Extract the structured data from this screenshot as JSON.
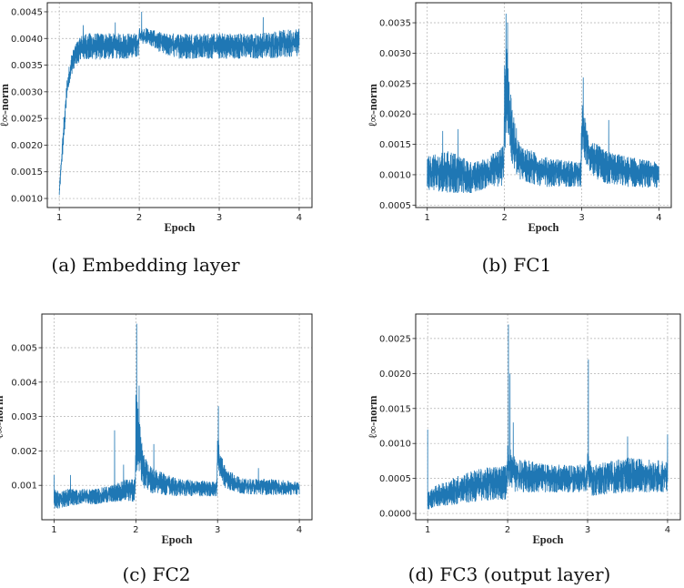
{
  "chart_data": [
    {
      "type": "line",
      "caption": "(a)  Embedding layer",
      "xlabel": "Epoch",
      "ylabel": "ℓ∞-norm",
      "xlim": [
        0.85,
        4.16
      ],
      "ylim": [
        0.00083,
        0.00467
      ],
      "xticks": [
        1,
        2,
        3,
        4
      ],
      "xticklabels": [
        "1",
        "2",
        "3",
        "4"
      ],
      "yticks": [
        0.001,
        0.0015,
        0.002,
        0.0025,
        0.003,
        0.0035,
        0.004,
        0.0045
      ],
      "yticklabels": [
        "0.0010",
        "0.0015",
        "0.0020",
        "0.0025",
        "0.0030",
        "0.0035",
        "0.0040",
        "0.0045"
      ],
      "grid": true,
      "color": "#1f77b4",
      "envelope": {
        "x": [
          1.0,
          1.03,
          1.06,
          1.1,
          1.15,
          1.2,
          1.3,
          1.5,
          1.7,
          1.9,
          1.99,
          2.0,
          2.1,
          2.3,
          2.5,
          3.0,
          3.5,
          4.0
        ],
        "low": [
          0.001,
          0.0016,
          0.0021,
          0.0029,
          0.0033,
          0.0035,
          0.0036,
          0.0036,
          0.00362,
          0.00362,
          0.00365,
          0.0039,
          0.0039,
          0.0037,
          0.00362,
          0.00362,
          0.00362,
          0.00365
        ],
        "high": [
          0.0012,
          0.0019,
          0.0026,
          0.0033,
          0.0037,
          0.0039,
          0.0041,
          0.0041,
          0.0041,
          0.0041,
          0.0041,
          0.0042,
          0.0042,
          0.0041,
          0.0041,
          0.0041,
          0.0041,
          0.0042
        ]
      },
      "spikes": [
        [
          1.3,
          0.00425
        ],
        [
          1.7,
          0.0043
        ],
        [
          2.03,
          0.0045
        ],
        [
          3.55,
          0.0044
        ]
      ]
    },
    {
      "type": "line",
      "caption": "(b)  FC1",
      "xlabel": "Epoch",
      "ylabel": "ℓ∞-norm",
      "xlim": [
        0.85,
        4.16
      ],
      "ylim": [
        0.00046,
        0.00383
      ],
      "xticks": [
        1,
        2,
        3,
        4
      ],
      "xticklabels": [
        "1",
        "2",
        "3",
        "4"
      ],
      "yticks": [
        0.0005,
        0.001,
        0.0015,
        0.002,
        0.0025,
        0.003,
        0.0035
      ],
      "yticklabels": [
        "0.0005",
        "0.0010",
        "0.0015",
        "0.0020",
        "0.0025",
        "0.0030",
        "0.0035"
      ],
      "grid": true,
      "color": "#1f77b4",
      "envelope": {
        "x": [
          1.0,
          1.3,
          1.6,
          1.8,
          1.99,
          2.0,
          2.03,
          2.06,
          2.1,
          2.2,
          2.5,
          2.99,
          3.0,
          3.05,
          3.1,
          3.3,
          3.6,
          4.0
        ],
        "low": [
          0.00075,
          0.0007,
          0.0007,
          0.0008,
          0.0008,
          0.0012,
          0.0018,
          0.0015,
          0.0011,
          0.0009,
          0.0008,
          0.0008,
          0.0014,
          0.0012,
          0.001,
          0.00085,
          0.0008,
          0.00078
        ],
        "high": [
          0.0013,
          0.0014,
          0.0012,
          0.0013,
          0.0015,
          0.0028,
          0.0033,
          0.0026,
          0.0021,
          0.0015,
          0.0013,
          0.0012,
          0.0022,
          0.0019,
          0.0016,
          0.0014,
          0.0013,
          0.0012
        ]
      },
      "spikes": [
        [
          1.4,
          0.00175
        ],
        [
          1.2,
          0.00172
        ],
        [
          2.02,
          0.00365
        ],
        [
          2.04,
          0.0035
        ],
        [
          3.02,
          0.0026
        ],
        [
          3.35,
          0.0019
        ]
      ]
    },
    {
      "type": "line",
      "caption": "(c)  FC2",
      "xlabel": "Epoch",
      "ylabel": "ℓ∞-norm",
      "xlim": [
        0.85,
        4.155
      ],
      "ylim": [
        0.0,
        0.00598
      ],
      "xticks": [
        1,
        2,
        3,
        4
      ],
      "xticklabels": [
        "1",
        "2",
        "3",
        "4"
      ],
      "yticks": [
        0.001,
        0.002,
        0.003,
        0.004,
        0.005
      ],
      "yticklabels": [
        "0.001",
        "0.002",
        "0.003",
        "0.004",
        "0.005"
      ],
      "grid": true,
      "color": "#1f77b4",
      "envelope": {
        "x": [
          1.0,
          1.2,
          1.5,
          1.7,
          1.9,
          1.99,
          2.0,
          2.03,
          2.06,
          2.1,
          2.2,
          2.5,
          2.99,
          3.0,
          3.05,
          3.1,
          3.3,
          3.6,
          4.0
        ],
        "low": [
          0.0003,
          0.0004,
          0.00045,
          0.0005,
          0.00055,
          0.0005,
          0.0012,
          0.0015,
          0.0012,
          0.0009,
          0.00075,
          0.00068,
          0.00068,
          0.0014,
          0.0011,
          0.0009,
          0.00075,
          0.00072,
          0.00072
        ],
        "high": [
          0.0009,
          0.0009,
          0.0009,
          0.001,
          0.0012,
          0.0012,
          0.0037,
          0.0033,
          0.0025,
          0.0019,
          0.0015,
          0.0012,
          0.0011,
          0.0025,
          0.0019,
          0.0015,
          0.0012,
          0.0012,
          0.0011
        ]
      },
      "spikes": [
        [
          1.0,
          0.0013
        ],
        [
          1.2,
          0.0013
        ],
        [
          1.74,
          0.0026
        ],
        [
          1.85,
          0.0016
        ],
        [
          2.01,
          0.0057
        ],
        [
          2.04,
          0.0039
        ],
        [
          2.22,
          0.0022
        ],
        [
          3.01,
          0.0033
        ],
        [
          3.5,
          0.0015
        ]
      ]
    },
    {
      "type": "line",
      "caption": "(d)  FC3 (output layer)",
      "xlabel": "Epoch",
      "ylabel": "ℓ∞-norm",
      "xlim": [
        0.85,
        4.16
      ],
      "ylim": [
        -9e-05,
        0.00285
      ],
      "xticks": [
        1,
        2,
        3,
        4
      ],
      "xticklabels": [
        "1",
        "2",
        "3",
        "4"
      ],
      "yticks": [
        0.0,
        0.0005,
        0.001,
        0.0015,
        0.002,
        0.0025
      ],
      "yticklabels": [
        "0.0000",
        "0.0005",
        "0.0010",
        "0.0015",
        "0.0020",
        "0.0025"
      ],
      "grid": true,
      "color": "#1f77b4",
      "envelope": {
        "x": [
          1.0,
          1.1,
          1.3,
          1.5,
          1.7,
          1.99,
          2.0,
          2.1,
          2.5,
          2.99,
          3.0,
          3.05,
          3.5,
          4.0
        ],
        "low": [
          5e-05,
          0.0001,
          0.00012,
          0.00015,
          0.00018,
          0.0002,
          0.0004,
          0.0003,
          0.0003,
          0.0003,
          0.0004,
          0.00025,
          0.0003,
          0.0003
        ],
        "high": [
          0.0003,
          0.0004,
          0.0005,
          0.0006,
          0.00065,
          0.0007,
          0.001,
          0.0008,
          0.0007,
          0.0007,
          0.0009,
          0.0007,
          0.0008,
          0.00075
        ]
      },
      "spikes": [
        [
          1.0,
          0.0012
        ],
        [
          2.01,
          0.0027
        ],
        [
          2.03,
          0.002
        ],
        [
          2.07,
          0.0013
        ],
        [
          3.01,
          0.0022
        ],
        [
          3.5,
          0.0011
        ],
        [
          4.0,
          0.00113
        ]
      ]
    }
  ]
}
